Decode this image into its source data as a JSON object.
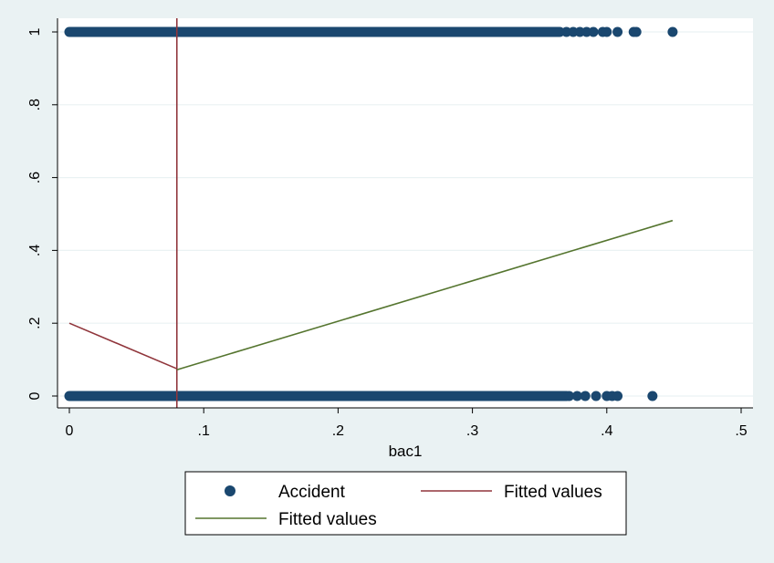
{
  "chart_data": {
    "type": "scatter",
    "title": "",
    "xlabel": "bac1",
    "ylabel": "",
    "xlim": [
      0,
      0.5
    ],
    "ylim": [
      0,
      1
    ],
    "x_ticks": [
      0,
      0.1,
      0.2,
      0.3,
      0.4,
      0.5
    ],
    "x_tick_labels": [
      "0",
      ".1",
      ".2",
      ".3",
      ".4",
      ".5"
    ],
    "y_ticks": [
      0,
      0.2,
      0.4,
      0.6,
      0.8,
      1
    ],
    "y_tick_labels": [
      "0",
      ".2",
      ".4",
      ".6",
      ".8",
      "1"
    ],
    "grid": true,
    "legend_position": "bottom",
    "series": [
      {
        "name": "Accident",
        "kind": "scatter",
        "color": "#1a476f",
        "dense_ranges": [
          {
            "y": 1,
            "x_from": 0,
            "x_to": 0.365
          },
          {
            "y": 0,
            "x_from": 0,
            "x_to": 0.37
          }
        ],
        "points": [
          {
            "x": 0.37,
            "y": 1
          },
          {
            "x": 0.375,
            "y": 1
          },
          {
            "x": 0.38,
            "y": 1
          },
          {
            "x": 0.385,
            "y": 1
          },
          {
            "x": 0.39,
            "y": 1
          },
          {
            "x": 0.397,
            "y": 1
          },
          {
            "x": 0.4,
            "y": 1
          },
          {
            "x": 0.408,
            "y": 1
          },
          {
            "x": 0.42,
            "y": 1
          },
          {
            "x": 0.422,
            "y": 1
          },
          {
            "x": 0.449,
            "y": 1
          },
          {
            "x": 0.372,
            "y": 0
          },
          {
            "x": 0.378,
            "y": 0
          },
          {
            "x": 0.384,
            "y": 0
          },
          {
            "x": 0.392,
            "y": 0
          },
          {
            "x": 0.4,
            "y": 0
          },
          {
            "x": 0.404,
            "y": 0
          },
          {
            "x": 0.408,
            "y": 0
          },
          {
            "x": 0.434,
            "y": 0
          }
        ]
      },
      {
        "name": "Fitted values",
        "kind": "line",
        "color": "#90353b",
        "points": [
          {
            "x": 0,
            "y": 0.2
          },
          {
            "x": 0.08,
            "y": 0.075
          }
        ]
      },
      {
        "name": "Fitted values",
        "kind": "line",
        "color": "#55752f",
        "points": [
          {
            "x": 0.08,
            "y": 0.072
          },
          {
            "x": 0.449,
            "y": 0.482
          }
        ]
      }
    ],
    "reference_lines": [
      {
        "orientation": "vertical",
        "x": 0.08,
        "color": "#90353b"
      }
    ]
  }
}
